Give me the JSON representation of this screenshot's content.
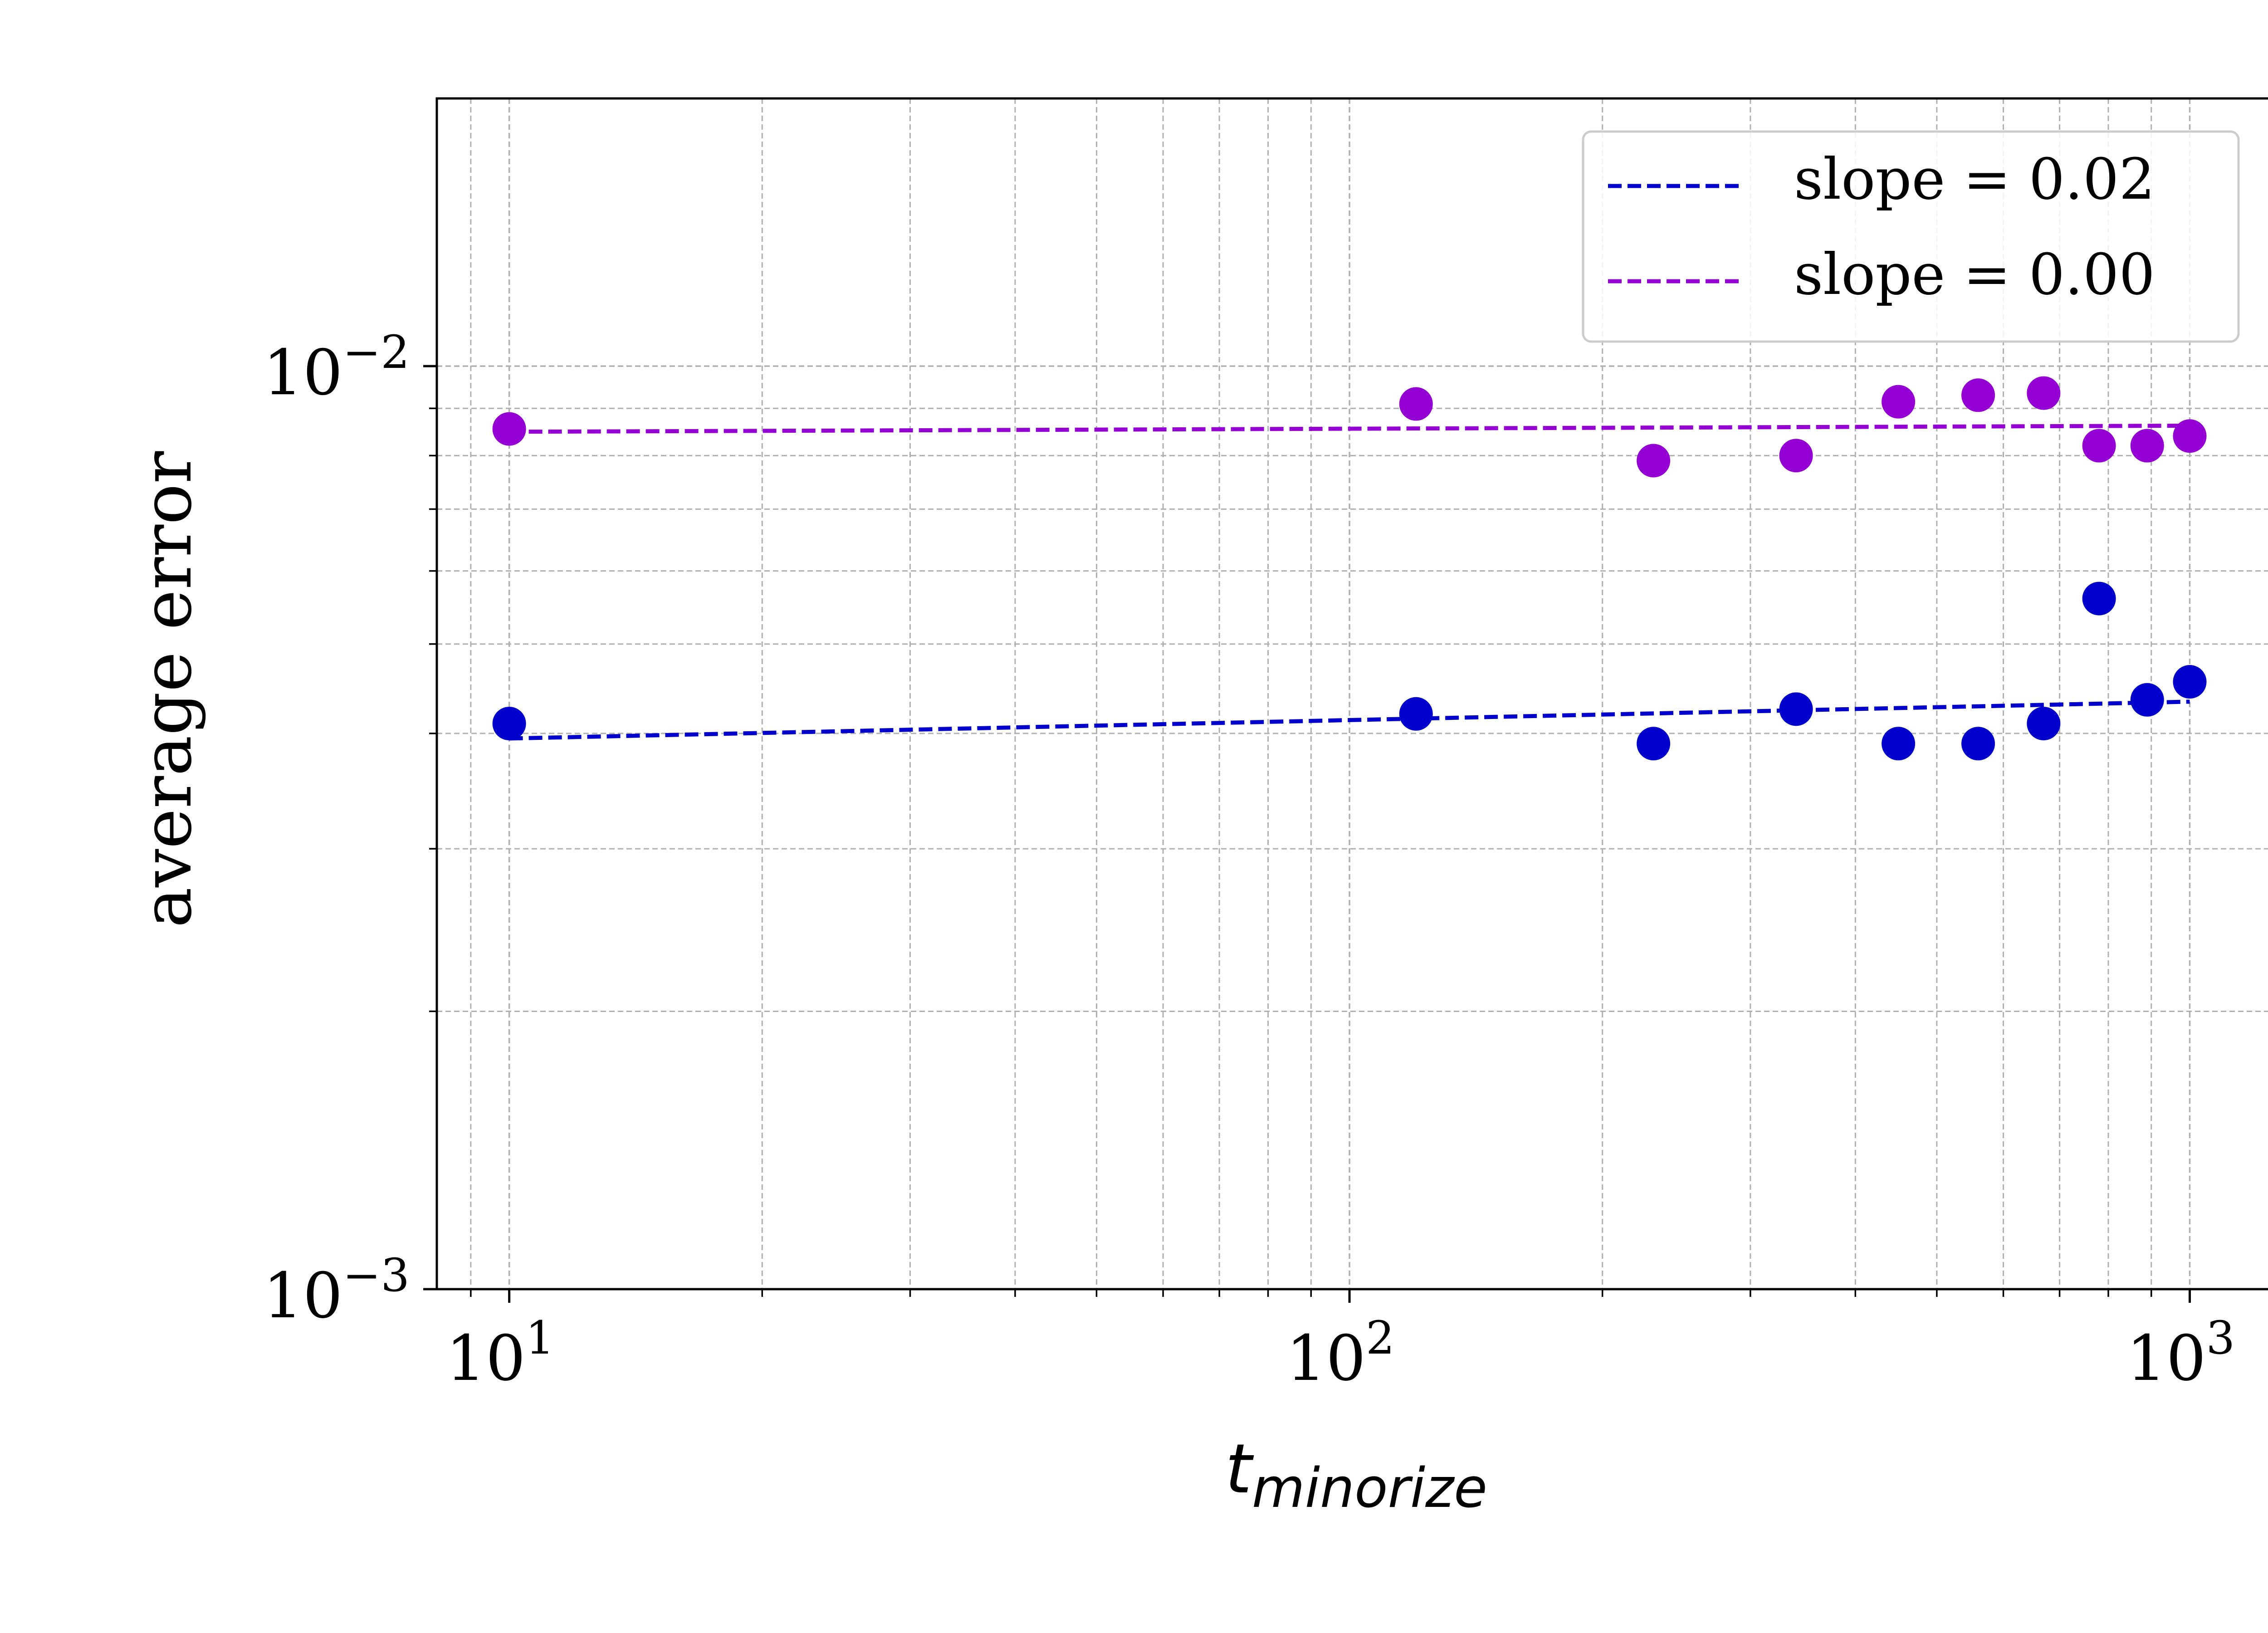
{
  "chart_data": {
    "type": "scatter",
    "x_scale": "log",
    "y_scale": "log",
    "xlim": [
      8.2,
      1250
    ],
    "ylim": [
      0.001,
      0.0195
    ],
    "grid": true,
    "legend_placement": "top-right",
    "xlabel_base": "t",
    "xlabel_sub": "minorize",
    "ylabel": "average error",
    "x_ticks": [
      {
        "value": 10,
        "base": "10",
        "exp": "1"
      },
      {
        "value": 100,
        "base": "10",
        "exp": "2"
      },
      {
        "value": 1000,
        "base": "10",
        "exp": "3"
      }
    ],
    "y_ticks": [
      {
        "value": 0.001,
        "base": "10",
        "exp": "−3"
      },
      {
        "value": 0.01,
        "base": "10",
        "exp": "−2"
      }
    ],
    "series": [
      {
        "color": "#0000cc",
        "x": [
          10,
          120,
          230,
          340,
          450,
          560,
          670,
          780,
          890,
          1000
        ],
        "y": [
          0.0041,
          0.0042,
          0.0039,
          0.00425,
          0.0039,
          0.0039,
          0.0041,
          0.0056,
          0.00435,
          0.00455
        ],
        "fit": {
          "label": "slope = 0.02",
          "x": [
            10,
            1000
          ],
          "y": [
            0.00395,
            0.00433
          ]
        }
      },
      {
        "color": "#9400d3",
        "x": [
          10,
          120,
          230,
          340,
          450,
          560,
          670,
          780,
          890,
          1000
        ],
        "y": [
          0.00855,
          0.0091,
          0.0079,
          0.008,
          0.00915,
          0.0093,
          0.00935,
          0.0082,
          0.0082,
          0.0084
        ],
        "fit": {
          "label": "slope = 0.00",
          "x": [
            10,
            1000
          ],
          "y": [
            0.00849,
            0.00862
          ]
        }
      }
    ]
  }
}
